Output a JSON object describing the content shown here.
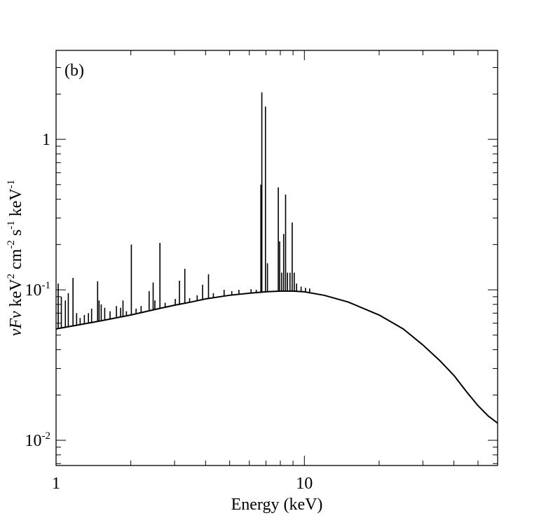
{
  "chart_data": {
    "type": "line",
    "panel_label": "(b)",
    "xlabel": "Energy (keV)",
    "ylabel_parts": [
      {
        "t": "νFν",
        "italic": true
      },
      {
        "t": " keV"
      },
      {
        "t": "2",
        "sup": true
      },
      {
        "t": " cm"
      },
      {
        "t": "-2",
        "sup": true
      },
      {
        "t": " s"
      },
      {
        "t": "-1",
        "sup": true
      },
      {
        "t": " keV"
      },
      {
        "t": "-1",
        "sup": true
      }
    ],
    "x_scale": "log",
    "y_scale": "log",
    "xlim": [
      1,
      60
    ],
    "ylim": [
      0.0068,
      3.9
    ],
    "x_ticks": [
      {
        "value": 1,
        "label": "1"
      },
      {
        "value": 10,
        "label": "10"
      }
    ],
    "y_ticks": [
      {
        "value": 0.01,
        "base": "10",
        "exp": "-2"
      },
      {
        "value": 0.1,
        "base": "10",
        "exp": "-1"
      },
      {
        "value": 1,
        "label": "1"
      }
    ],
    "grid": false,
    "legend": "none",
    "line_color": "#000000",
    "series": [
      {
        "continuum": {
          "x": [
            1,
            1.2,
            1.5,
            2,
            2.5,
            3,
            3.5,
            4,
            5,
            6,
            7,
            8,
            9,
            10,
            12,
            15,
            20,
            25,
            30,
            35,
            40,
            45,
            50,
            55,
            60
          ],
          "y": [
            0.055,
            0.058,
            0.062,
            0.068,
            0.074,
            0.079,
            0.083,
            0.087,
            0.092,
            0.095,
            0.097,
            0.098,
            0.098,
            0.097,
            0.092,
            0.083,
            0.068,
            0.055,
            0.043,
            0.034,
            0.027,
            0.021,
            0.017,
            0.0145,
            0.013
          ]
        },
        "lines": [
          [
            1.02,
            0.11
          ],
          [
            1.05,
            0.09
          ],
          [
            1.09,
            0.085
          ],
          [
            1.12,
            0.095
          ],
          [
            1.17,
            0.12
          ],
          [
            1.21,
            0.07
          ],
          [
            1.25,
            0.065
          ],
          [
            1.3,
            0.068
          ],
          [
            1.35,
            0.07
          ],
          [
            1.39,
            0.075
          ],
          [
            1.47,
            0.114
          ],
          [
            1.49,
            0.085
          ],
          [
            1.52,
            0.08
          ],
          [
            1.57,
            0.076
          ],
          [
            1.65,
            0.072
          ],
          [
            1.75,
            0.078
          ],
          [
            1.82,
            0.076
          ],
          [
            1.86,
            0.085
          ],
          [
            1.92,
            0.072
          ],
          [
            2.01,
            0.2
          ],
          [
            2.1,
            0.075
          ],
          [
            2.2,
            0.078
          ],
          [
            2.37,
            0.098
          ],
          [
            2.46,
            0.112
          ],
          [
            2.5,
            0.085
          ],
          [
            2.62,
            0.205
          ],
          [
            2.75,
            0.082
          ],
          [
            3.02,
            0.087
          ],
          [
            3.14,
            0.115
          ],
          [
            3.3,
            0.138
          ],
          [
            3.45,
            0.088
          ],
          [
            3.7,
            0.092
          ],
          [
            3.89,
            0.108
          ],
          [
            4.11,
            0.127
          ],
          [
            4.3,
            0.095
          ],
          [
            4.75,
            0.1
          ],
          [
            5.1,
            0.098
          ],
          [
            5.45,
            0.1
          ],
          [
            6.1,
            0.101
          ],
          [
            6.4,
            0.1
          ],
          [
            6.68,
            0.5
          ],
          [
            6.7,
            0.205
          ],
          [
            6.74,
            2.05
          ],
          [
            6.97,
            1.65
          ],
          [
            7.1,
            0.15
          ],
          [
            7.85,
            0.48
          ],
          [
            7.95,
            0.21
          ],
          [
            8.1,
            0.13
          ],
          [
            8.25,
            0.235
          ],
          [
            8.4,
            0.43
          ],
          [
            8.55,
            0.13
          ],
          [
            8.75,
            0.13
          ],
          [
            8.93,
            0.28
          ],
          [
            9.1,
            0.13
          ],
          [
            9.3,
            0.11
          ],
          [
            9.7,
            0.105
          ],
          [
            10.1,
            0.103
          ],
          [
            10.5,
            0.102
          ]
        ]
      }
    ]
  }
}
